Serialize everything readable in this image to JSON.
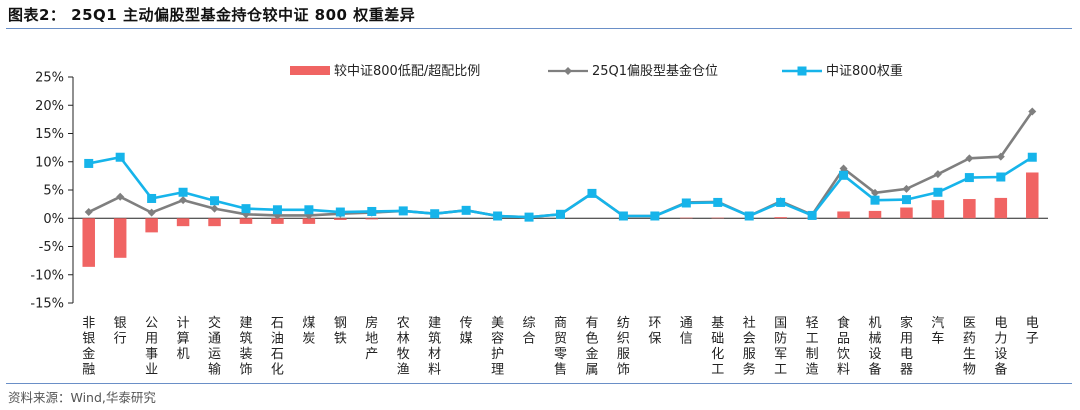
{
  "header": {
    "title": "图表2： 25Q1 主动偏股型基金持仓较中证 800 权重差异"
  },
  "footer": {
    "source": "资料来源：Wind,华泰研究"
  },
  "colors": {
    "bar": "#f06463",
    "fund": "#7f7f7f",
    "index": "#16b4ea"
  },
  "chart_data": {
    "type": "bar",
    "title": "",
    "xlabel": "",
    "ylabel": "",
    "ylim": [
      -15,
      25
    ],
    "yticks": [
      "25%",
      "20%",
      "15%",
      "10%",
      "5%",
      "0%",
      "-5%",
      "-10%",
      "-15%"
    ],
    "grid": false,
    "legend_position": "top",
    "categories": [
      "非银金融",
      "银行",
      "公用事业",
      "计算机",
      "交通运输",
      "建筑装饰",
      "石油石化",
      "煤炭",
      "钢铁",
      "房地产",
      "农林牧渔",
      "建筑材料",
      "传媒",
      "美容护理",
      "综合",
      "商贸零售",
      "有色金属",
      "纺织服饰",
      "环保",
      "通信",
      "基础化工",
      "社会服务",
      "国防军工",
      "轻工制造",
      "食品饮料",
      "机械设备",
      "家用电器",
      "汽车",
      "医药生物",
      "电力设备",
      "电子"
    ],
    "series": [
      {
        "name": "较中证800低配/超配比例",
        "type": "bar",
        "values": [
          -8.6,
          -7.0,
          -2.5,
          -1.4,
          -1.4,
          -1.0,
          -1.0,
          -1.0,
          -0.3,
          -0.2,
          0.0,
          0.0,
          0.0,
          0.0,
          0.0,
          0.0,
          0.0,
          0.0,
          0.0,
          0.1,
          0.1,
          0.0,
          0.2,
          0.1,
          1.2,
          1.3,
          1.9,
          3.2,
          3.4,
          3.6,
          8.1
        ]
      },
      {
        "name": "25Q1偏股型基金仓位",
        "type": "line",
        "values": [
          1.1,
          3.8,
          1.0,
          3.2,
          1.7,
          0.7,
          0.5,
          0.5,
          0.8,
          1.0,
          1.3,
          0.8,
          1.4,
          0.4,
          0.2,
          0.7,
          4.4,
          0.4,
          0.4,
          2.8,
          2.9,
          0.4,
          3.0,
          0.6,
          8.8,
          4.5,
          5.2,
          7.8,
          10.6,
          10.9,
          18.9
        ]
      },
      {
        "name": "中证800权重",
        "type": "line",
        "values": [
          9.7,
          10.8,
          3.5,
          4.6,
          3.1,
          1.7,
          1.5,
          1.5,
          1.1,
          1.2,
          1.3,
          0.8,
          1.4,
          0.4,
          0.2,
          0.7,
          4.4,
          0.4,
          0.4,
          2.7,
          2.8,
          0.4,
          2.8,
          0.5,
          7.6,
          3.2,
          3.3,
          4.6,
          7.2,
          7.3,
          10.8
        ]
      }
    ]
  }
}
